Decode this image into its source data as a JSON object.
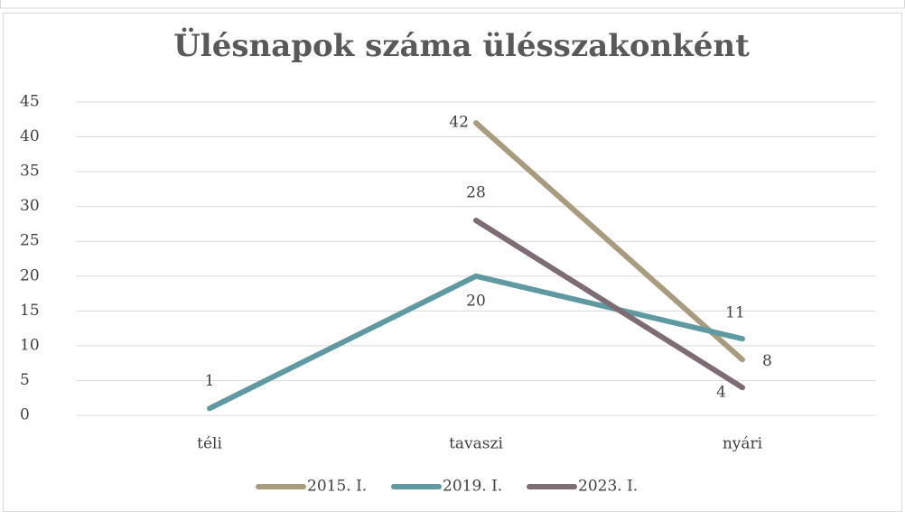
{
  "chart_data": {
    "type": "line",
    "title": "Ülésnapok száma ülésszakonként",
    "categories": [
      "téli",
      "tavaszi",
      "nyári"
    ],
    "series": [
      {
        "name": "2015. I.",
        "color": "#a99b7d",
        "values": [
          null,
          42,
          8
        ]
      },
      {
        "name": "2019. I.",
        "color": "#5f9aa3",
        "values": [
          1,
          20,
          11
        ]
      },
      {
        "name": "2023. I.",
        "color": "#7d6c73",
        "values": [
          null,
          28,
          4
        ]
      }
    ],
    "ylim": [
      0,
      45
    ],
    "yticks": [
      0,
      5,
      10,
      15,
      20,
      25,
      30,
      35,
      40,
      45
    ],
    "grid": true,
    "legend": "bottom",
    "data_labels": true
  }
}
